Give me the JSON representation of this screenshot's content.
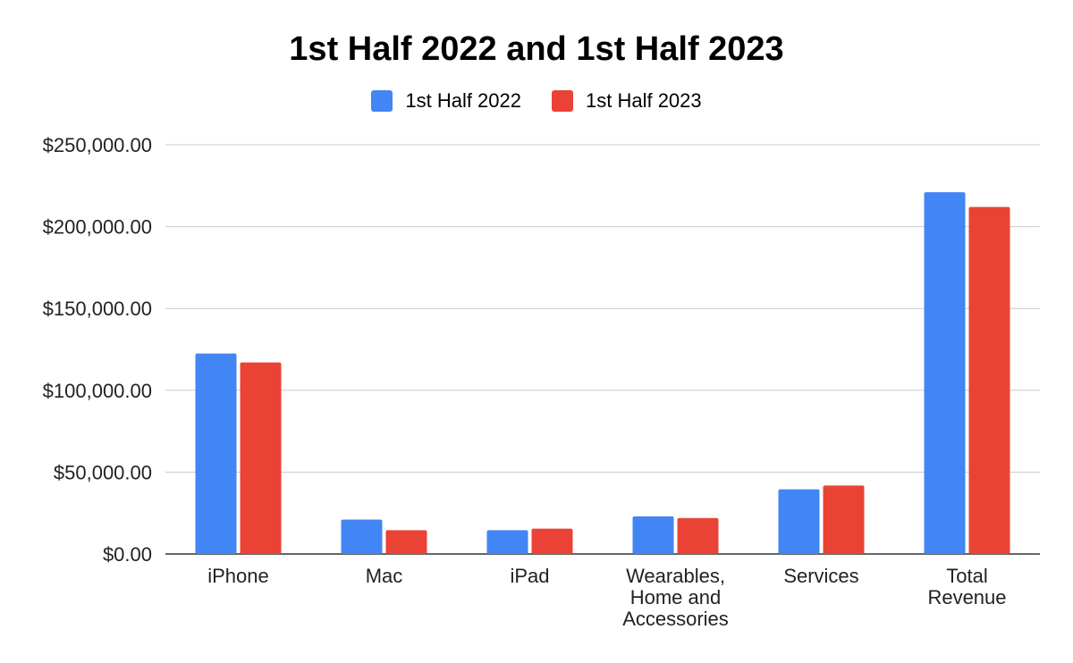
{
  "chart_data": {
    "type": "bar",
    "title": "1st Half 2022 and 1st Half 2023",
    "categories": [
      [
        "iPhone"
      ],
      [
        "Mac"
      ],
      [
        "iPad"
      ],
      [
        "Wearables,",
        "Home and",
        "Accessories"
      ],
      [
        "Services"
      ],
      [
        "Total",
        "Revenue"
      ]
    ],
    "series": [
      {
        "name": "1st Half 2022",
        "color": "#4285f4",
        "values": [
          122500,
          21000,
          14500,
          23000,
          39500,
          221000
        ]
      },
      {
        "name": "1st Half 2023",
        "color": "#ea4335",
        "values": [
          117000,
          14500,
          15500,
          22000,
          41800,
          212000
        ]
      }
    ],
    "ylim": [
      0,
      250000
    ],
    "yticks": [
      {
        "value": 0,
        "label": "$0.00"
      },
      {
        "value": 50000,
        "label": "$50,000.00"
      },
      {
        "value": 100000,
        "label": "$100,000.00"
      },
      {
        "value": 150000,
        "label": "$150,000.00"
      },
      {
        "value": 200000,
        "label": "$200,000.00"
      },
      {
        "value": 250000,
        "label": "$250,000.00"
      }
    ],
    "grid": true,
    "legend_position": "top-center"
  }
}
